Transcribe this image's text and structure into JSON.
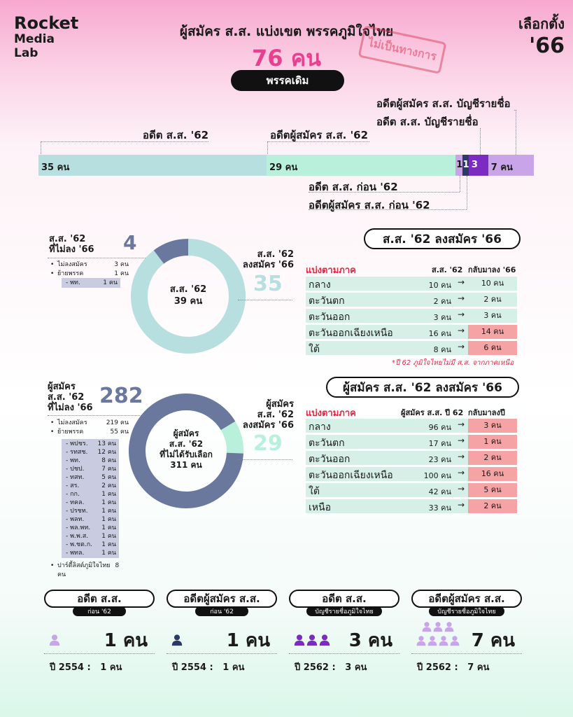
{
  "logo": {
    "line1": "Rocket",
    "line2": "Media",
    "line3": "Lab"
  },
  "brand": {
    "line1": "เลือกตั้ง",
    "line2": "'66"
  },
  "title": "ผู้สมัคร ส.ส. แบ่งเขต พรรคภูมิใจไทย",
  "total": "76 คน",
  "stamp": "ไม่เป็นทางการ",
  "party_pill": "พรรคเดิม",
  "bar": {
    "labels": {
      "ex_mp62": "อดีต ส.ส. '62",
      "ex_cand62": "อดีตผู้สมัคร ส.ส. '62",
      "ex_partylist_cand": "อดีตผู้สมัคร ส.ส. บัญชีรายชื่อ",
      "ex_partylist_mp": "อดีต ส.ส. บัญชีรายชื่อ",
      "ex_mp_before62": "อดีต ส.ส. ก่อน '62",
      "ex_cand_before62": "อดีตผู้สมัคร ส.ส. ก่อน '62"
    },
    "segment_texts": [
      "35 คน",
      "29 คน",
      "1",
      "1",
      "3",
      "7 คน"
    ]
  },
  "section1": {
    "pill": "ส.ส. '62 ลงสมัคร '66",
    "left_label": "ส.ส. '62\nที่ไม่ลง '66",
    "left_count": "4",
    "left_items": [
      {
        "label": "ไม่ลงสมัคร",
        "value": "3 คน"
      },
      {
        "label": "ย้ายพรรค",
        "value": "1 คน"
      }
    ],
    "left_sub": [
      {
        "label": "- พท.",
        "value": "1 คน"
      }
    ],
    "center": "ส.ส. '62\n39 คน",
    "right_label": "ส.ส. '62\nลงสมัคร '66",
    "right_count": "35",
    "table_hdr": {
      "region": "แบ่งตามภาค",
      "c1": "ส.ส. '62",
      "c2": "กลับมาลง '66"
    },
    "rows": [
      {
        "name": "กลาง",
        "v62": "10 คน",
        "v66": "10 คน",
        "red": false
      },
      {
        "name": "ตะวันตก",
        "v62": "2 คน",
        "v66": "2 คน",
        "red": false
      },
      {
        "name": "ตะวันออก",
        "v62": "3 คน",
        "v66": "3 คน",
        "red": false
      },
      {
        "name": "ตะวันออกเฉียงเหนือ",
        "v62": "16 คน",
        "v66": "14 คน",
        "red": true
      },
      {
        "name": "ใต้",
        "v62": "8 คน",
        "v66": "6 คน",
        "red": true
      }
    ],
    "note": "*ปี 62 ภูมิใจไทยไม่มี ส.ส. จากภาคเหนือ"
  },
  "section2": {
    "pill": "ผู้สมัคร ส.ส. '62 ลงสมัคร '66",
    "left_label": "ผู้สมัคร\nส.ส. '62\nที่ไม่ลง '66",
    "left_count": "282",
    "left_items": [
      {
        "label": "ไม่ลงสมัคร",
        "value": "219 คน"
      },
      {
        "label": "ย้ายพรรค",
        "value": "55 คน"
      }
    ],
    "left_sub": [
      {
        "label": "- พปชร.",
        "value": "13 คน"
      },
      {
        "label": "- รทสช.",
        "value": "12 คน"
      },
      {
        "label": "- พท.",
        "value": "8 คน"
      },
      {
        "label": "- ปชป.",
        "value": "7 คน"
      },
      {
        "label": "- ทสท.",
        "value": "5 คน"
      },
      {
        "label": "- สร.",
        "value": "2 คน"
      },
      {
        "label": "- กก.",
        "value": "1 คน"
      },
      {
        "label": "- ทคล.",
        "value": "1 คน"
      },
      {
        "label": "- ปรชท.",
        "value": "1 คน"
      },
      {
        "label": "- พลท.",
        "value": "1 คน"
      },
      {
        "label": "- พล.พท.",
        "value": "1 คน"
      },
      {
        "label": "- พ.พ.ส.",
        "value": "1 คน"
      },
      {
        "label": "- พ.ชต.ก.",
        "value": "1 คน"
      },
      {
        "label": "- พทล.",
        "value": "1 คน"
      }
    ],
    "left_extra": {
      "label": "ปาร์ตี้ลิสต์ภูมิใจไทย",
      "value": "8 คน"
    },
    "center": "ผู้สมัคร\nส.ส. '62\nที่ไม่ได้รับเลือก\n311 คน",
    "right_label": "ผู้สมัคร\nส.ส. '62\nลงสมัคร '66",
    "right_count": "29",
    "table_hdr": {
      "region": "แบ่งตามภาค",
      "c1": "ผู้สมัคร ส.ส. ปี 62",
      "c2": "กลับมาลงปี 66"
    },
    "rows": [
      {
        "name": "กลาง",
        "v62": "96 คน",
        "v66": "3 คน",
        "red": true
      },
      {
        "name": "ตะวันตก",
        "v62": "17 คน",
        "v66": "1 คน",
        "red": true
      },
      {
        "name": "ตะวันออก",
        "v62": "23 คน",
        "v66": "2 คน",
        "red": true
      },
      {
        "name": "ตะวันออกเฉียงเหนือ",
        "v62": "100 คน",
        "v66": "16 คน",
        "red": true
      },
      {
        "name": "ใต้",
        "v62": "42 คน",
        "v66": "5 คน",
        "red": true
      },
      {
        "name": "เหนือ",
        "v62": "33 คน",
        "v66": "2 คน",
        "red": true
      }
    ]
  },
  "cards": [
    {
      "pill": "อดีต ส.ส.",
      "tag": "ก่อน '62",
      "count": "1 คน",
      "year": "ปี 2554 :   1 คน",
      "color": "#c9a4e8",
      "icons": 1
    },
    {
      "pill": "อดีตผู้สมัคร ส.ส.",
      "tag": "ก่อน '62",
      "count": "1 คน",
      "year": "ปี 2554 :   1 คน",
      "color": "#2b3a67",
      "icons": 1
    },
    {
      "pill": "อดีต ส.ส.",
      "tag": "บัญชีรายชื่อภูมิใจไทย",
      "count": "3 คน",
      "year": "ปี 2562 :   3 คน",
      "color": "#7b2ac2",
      "icons": 3
    },
    {
      "pill": "อดีตผู้สมัคร ส.ส.",
      "tag": "บัญชีรายชื่อภูมิใจไทย",
      "count": "7 คน",
      "year": "ปี 2562 :   7 คน",
      "color": "#c9a4e8",
      "icons": 7
    }
  ],
  "colors": {
    "ex_mp62": "#b7dfe0",
    "ex_cand62": "#b9f0dc",
    "before62_mp": "#c9a4e8",
    "before62_cand": "#2b3a67",
    "partylist_mp": "#7b2ac2",
    "partylist_cand": "#c9a4e8",
    "donut_teal": "#b7dfe0",
    "donut_navy": "#6b789e",
    "mint": "#b9f0dc",
    "pink": "#e8408f"
  },
  "chart_data": [
    {
      "type": "bar",
      "categories": [
        "อดีต ส.ส. '62",
        "อดีตผู้สมัคร ส.ส. '62",
        "อดีต ส.ส. ก่อน '62",
        "อดีตผู้สมัคร ส.ส. ก่อน '62",
        "อดีต ส.ส. บัญชีรายชื่อ",
        "อดีตผู้สมัคร ส.ส. บัญชีรายชื่อ"
      ],
      "values": [
        35,
        29,
        1,
        1,
        3,
        7
      ],
      "stacked": true
    },
    {
      "type": "pie",
      "categories": [
        "ส.ส. '62 ลงสมัคร '66",
        "ส.ส. '62 ที่ไม่ลง '66"
      ],
      "values": [
        35,
        4
      ]
    },
    {
      "type": "pie",
      "categories": [
        "ผู้สมัคร ส.ส. '62 ลงสมัคร '66",
        "ผู้สมัคร ส.ส. '62 ที่ไม่ลง '66"
      ],
      "values": [
        29,
        282
      ]
    }
  ]
}
